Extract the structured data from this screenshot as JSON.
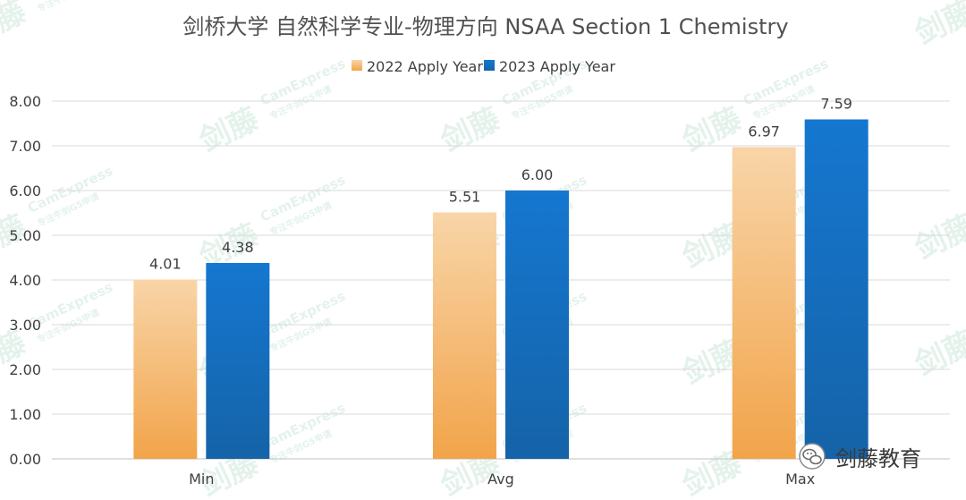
{
  "chart_data": {
    "type": "bar",
    "title": "剑桥大学 自然科学专业-物理方向 NSAA Section 1 Chemistry",
    "categories": [
      "Min",
      "Avg",
      "Max"
    ],
    "series": [
      {
        "name": "2022 Apply Year",
        "values": [
          4.01,
          5.51,
          6.97
        ]
      },
      {
        "name": "2023 Apply Year",
        "values": [
          4.38,
          6.0,
          7.59
        ]
      }
    ],
    "data_labels": [
      [
        "4.01",
        "5.51",
        "6.97"
      ],
      [
        "4.38",
        "6.00",
        "7.59"
      ]
    ],
    "y_ticks": [
      "0.00",
      "1.00",
      "2.00",
      "3.00",
      "4.00",
      "5.00",
      "6.00",
      "7.00",
      "8.00"
    ],
    "ylim": [
      0,
      8
    ],
    "grid": true,
    "legend_position": "top",
    "colors": {
      "series_2022_top": "#f8d5a8",
      "series_2022_bottom": "#f2a44a",
      "series_2023_top": "#1577d0",
      "series_2023_bottom": "#1563a8",
      "title": "#505050",
      "axis_text": "#404040",
      "grid": "#d9d9d9"
    }
  },
  "watermark": {
    "cn": "剑藤",
    "en": "CamExpress",
    "sub": "专注牛剑G5申请"
  },
  "brand": {
    "icon": "wechat-icon",
    "name": "剑藤教育"
  }
}
